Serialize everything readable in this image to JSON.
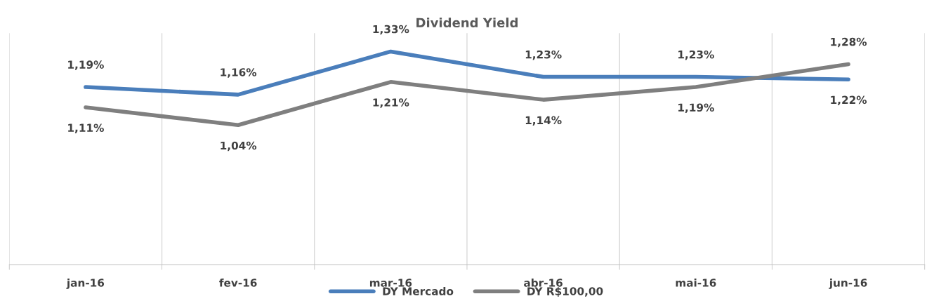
{
  "chart_data": {
    "type": "line",
    "title": "Dividend Yield",
    "categories": [
      "jan-16",
      "fev-16",
      "mar-16",
      "abr-16",
      "mai-16",
      "jun-16"
    ],
    "series": [
      {
        "name": "DY Mercado",
        "color": "#4a7ebb",
        "values": [
          1.19,
          1.16,
          1.33,
          1.23,
          1.23,
          1.22
        ],
        "value_labels": [
          "1,19%",
          "1,16%",
          "1,33%",
          "1,23%",
          "1,23%",
          "1,22%"
        ]
      },
      {
        "name": "DY R$100,00",
        "color": "#7f7f7f",
        "values": [
          1.11,
          1.04,
          1.21,
          1.14,
          1.19,
          1.28
        ],
        "value_labels": [
          "1,11%",
          "1,04%",
          "1,21%",
          "1,14%",
          "1,19%",
          "1,28%"
        ]
      }
    ],
    "grid": "x",
    "legend": "bottom",
    "marker": "none",
    "line_style": "solid"
  }
}
